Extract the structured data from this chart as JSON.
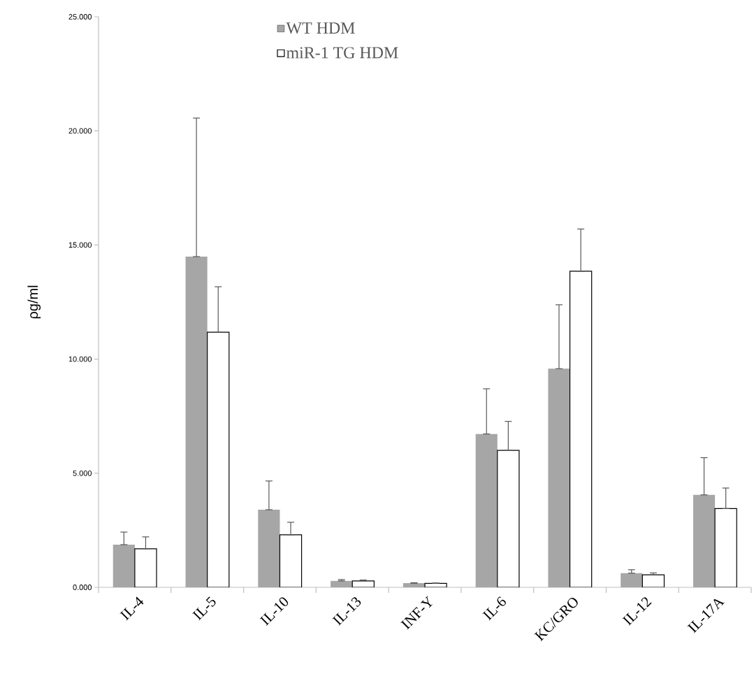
{
  "chart_data": {
    "type": "bar",
    "ylabel": "ρg/ml",
    "categories": [
      "IL-4",
      "IL-5",
      "IL-10",
      "IL-13",
      "INF-Y",
      "IL-6",
      "KC/GRO",
      "IL-12",
      "IL-17A"
    ],
    "series": [
      {
        "name": "WT HDM",
        "color": "#a6a6a6",
        "values": [
          1.87,
          14.49,
          3.4,
          0.28,
          0.18,
          6.72,
          9.58,
          0.62,
          4.05
        ],
        "errors": [
          [
            1.87,
            2.42
          ],
          [
            14.49,
            20.56
          ],
          [
            3.4,
            4.66
          ],
          [
            0.28,
            0.34
          ],
          [
            0.18,
            0.2
          ],
          [
            6.72,
            8.7
          ],
          [
            9.58,
            12.38
          ],
          [
            0.62,
            0.77
          ],
          [
            4.05,
            5.68
          ]
        ]
      },
      {
        "name": "miR-1 TG HDM",
        "color": "#000000",
        "values": [
          1.69,
          11.18,
          2.3,
          0.28,
          0.17,
          6.0,
          13.85,
          0.55,
          3.45
        ],
        "errors": [
          [
            1.69,
            2.21
          ],
          [
            11.18,
            13.17
          ],
          [
            2.3,
            2.85
          ],
          [
            0.28,
            0.32
          ],
          [
            0.17,
            0.19
          ],
          [
            6.0,
            7.27
          ],
          [
            13.85,
            15.7
          ],
          [
            0.55,
            0.63
          ],
          [
            3.45,
            4.35
          ]
        ]
      }
    ],
    "ylim": [
      0,
      25
    ],
    "yticks": [
      {
        "value": 0,
        "label": "0.000"
      },
      {
        "value": 5,
        "label": "5.000"
      },
      {
        "value": 10,
        "label": "10.000"
      },
      {
        "value": 15,
        "label": "15.000"
      },
      {
        "value": 20,
        "label": "20.000"
      },
      {
        "value": 25,
        "label": "25.000"
      }
    ],
    "legend": "top",
    "grid": false
  }
}
